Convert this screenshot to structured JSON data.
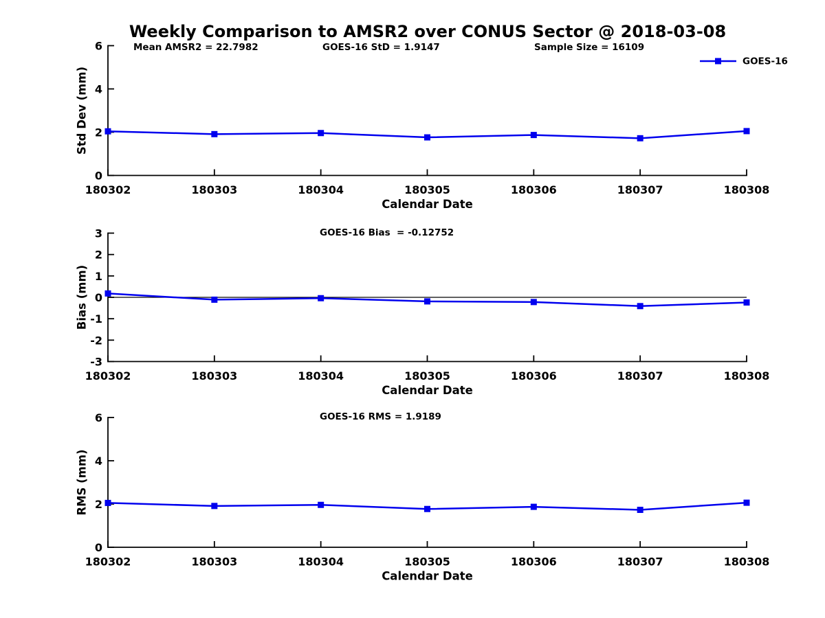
{
  "title": "Weekly Comparison to AMSR2 over CONUS Sector @ 2018-03-08",
  "colors": {
    "series": "#0000EE",
    "axis": "#000000",
    "text": "#000000",
    "background": "#FFFFFF"
  },
  "legend": {
    "label": "GOES-16",
    "position": "top-right"
  },
  "chart_data": [
    {
      "type": "line",
      "title": "",
      "xlabel": "Calendar Date",
      "ylabel": "Std Dev (mm)",
      "ylim": [
        0,
        6
      ],
      "yticks": [
        0,
        2,
        4,
        6
      ],
      "grid": false,
      "categories": [
        "180302",
        "180303",
        "180304",
        "180305",
        "180306",
        "180307",
        "180308"
      ],
      "series": [
        {
          "name": "GOES-16",
          "marker": "square",
          "values": [
            2.04,
            1.91,
            1.96,
            1.76,
            1.87,
            1.72,
            2.05
          ]
        }
      ],
      "annotations": [
        "Mean AMSR2 = 22.7982",
        "GOES-16 StD = 1.9147",
        "Sample Size = 16109"
      ],
      "legend_position": "top-right"
    },
    {
      "type": "line",
      "title": "",
      "xlabel": "Calendar Date",
      "ylabel": "Bias (mm)",
      "ylim": [
        -3,
        3
      ],
      "yticks": [
        -3,
        -2,
        -1,
        0,
        1,
        2,
        3
      ],
      "grid": false,
      "zero_line": true,
      "categories": [
        "180302",
        "180303",
        "180304",
        "180305",
        "180306",
        "180307",
        "180308"
      ],
      "series": [
        {
          "name": "GOES-16",
          "marker": "square",
          "values": [
            0.18,
            -0.11,
            -0.04,
            -0.19,
            -0.22,
            -0.41,
            -0.24
          ]
        }
      ],
      "annotations": [
        "GOES-16 Bias  = -0.12752"
      ]
    },
    {
      "type": "line",
      "title": "",
      "xlabel": "Calendar Date",
      "ylabel": "RMS (mm)",
      "ylim": [
        0,
        6
      ],
      "yticks": [
        0,
        2,
        4,
        6
      ],
      "grid": false,
      "categories": [
        "180302",
        "180303",
        "180304",
        "180305",
        "180306",
        "180307",
        "180308"
      ],
      "series": [
        {
          "name": "GOES-16",
          "marker": "square",
          "values": [
            2.05,
            1.91,
            1.96,
            1.77,
            1.87,
            1.73,
            2.06
          ]
        }
      ],
      "annotations": [
        "GOES-16 RMS = 1.9189"
      ]
    }
  ]
}
